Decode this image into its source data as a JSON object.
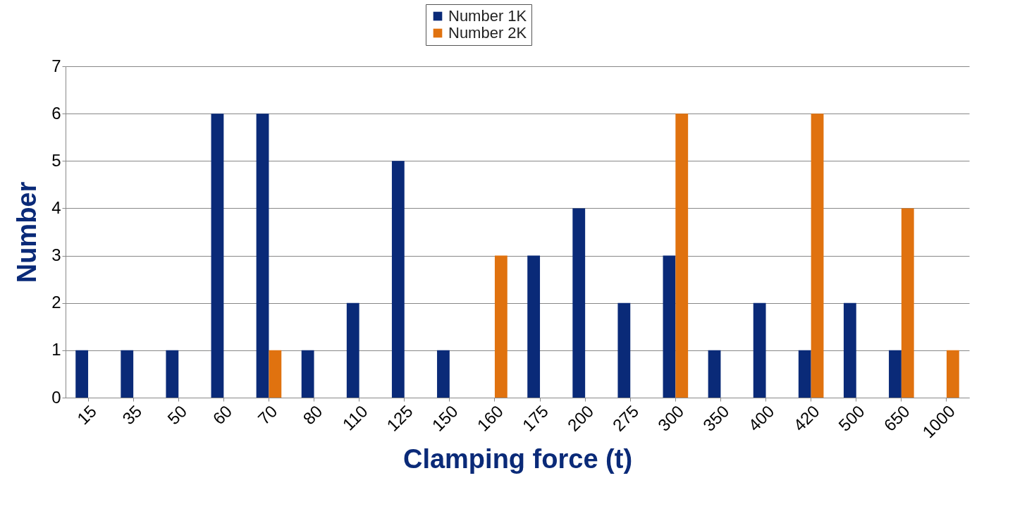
{
  "chart_data": {
    "type": "bar",
    "xlabel": "Clamping force (t)",
    "ylabel": "Number",
    "categories": [
      "15",
      "35",
      "50",
      "60",
      "70",
      "80",
      "110",
      "125",
      "150",
      "160",
      "175",
      "200",
      "275",
      "300",
      "350",
      "400",
      "420",
      "500",
      "650",
      "1000"
    ],
    "series": [
      {
        "name": "Number 1K",
        "color": "#0a2a78",
        "values": [
          1,
          1,
          1,
          6,
          6,
          1,
          2,
          5,
          1,
          0,
          3,
          4,
          2,
          3,
          1,
          2,
          1,
          2,
          1,
          0
        ]
      },
      {
        "name": "Number 2K",
        "color": "#e0720f",
        "values": [
          0,
          0,
          0,
          0,
          1,
          0,
          0,
          0,
          0,
          3,
          0,
          0,
          0,
          6,
          0,
          0,
          6,
          0,
          4,
          1
        ]
      }
    ],
    "ylim": [
      0,
      7
    ],
    "yticks": [
      0,
      1,
      2,
      3,
      4,
      5,
      6,
      7
    ],
    "grid": "y",
    "legend": "top"
  }
}
